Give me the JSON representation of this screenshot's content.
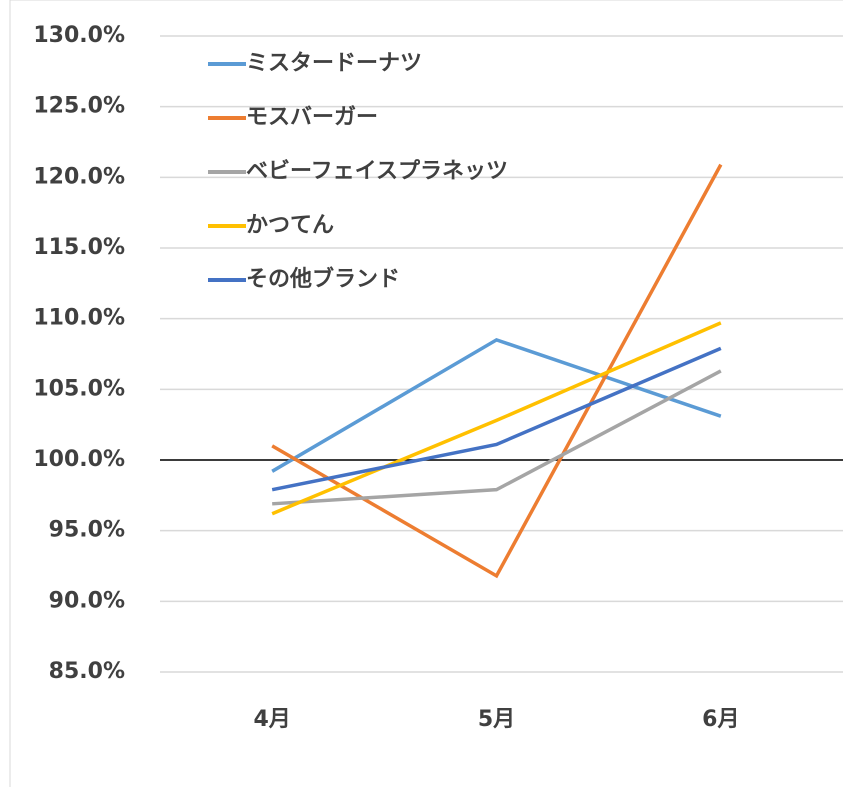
{
  "chart_data": {
    "type": "line",
    "categories": [
      "4月",
      "5月",
      "6月"
    ],
    "series": [
      {
        "name": "ミスタードーナツ",
        "color": "#5b9bd5",
        "values": [
          99.2,
          108.5,
          103.1
        ]
      },
      {
        "name": "モスバーガー",
        "color": "#ed7d31",
        "values": [
          101.0,
          91.8,
          120.9
        ]
      },
      {
        "name": "ベビーフェイスプラネッツ",
        "color": "#a5a5a5",
        "values": [
          96.9,
          97.9,
          106.3
        ]
      },
      {
        "name": "かつてん",
        "color": "#ffc000",
        "values": [
          96.2,
          102.8,
          109.7
        ]
      },
      {
        "name": "その他ブランド",
        "color": "#4472c4",
        "values": [
          97.9,
          101.1,
          107.9
        ]
      }
    ],
    "ylim": [
      85,
      130
    ],
    "yticks": [
      {
        "value": 85,
        "label": "85.0%"
      },
      {
        "value": 90,
        "label": "90.0%"
      },
      {
        "value": 95,
        "label": "95.0%"
      },
      {
        "value": 100,
        "label": "100.0%"
      },
      {
        "value": 105,
        "label": "105.0%"
      },
      {
        "value": 110,
        "label": "110.0%"
      },
      {
        "value": 115,
        "label": "115.0%"
      },
      {
        "value": 120,
        "label": "120.0%"
      },
      {
        "value": 125,
        "label": "125.0%"
      },
      {
        "value": 130,
        "label": "130.0%"
      }
    ],
    "grid": true,
    "legend": "upper left"
  }
}
